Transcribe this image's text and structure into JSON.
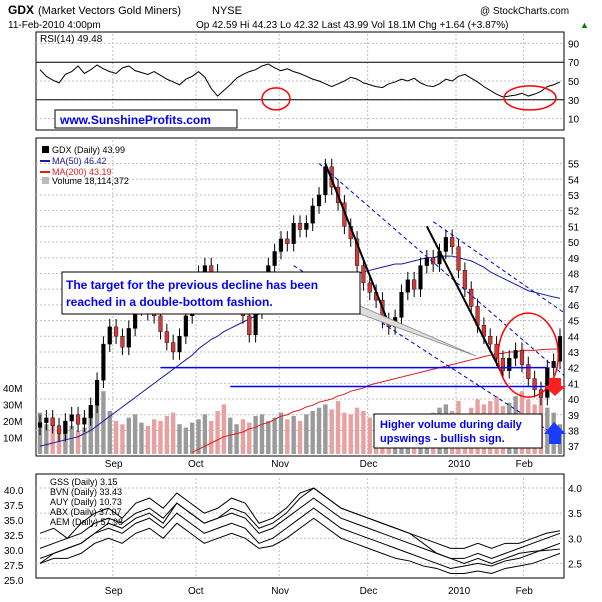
{
  "header": {
    "symbol": "GDX",
    "name": "(Market Vectors Gold Miners)",
    "exchange": "NYSE",
    "copyright": "@ StockCharts.com",
    "date": "11-Feb-2010 4:00pm",
    "ohlc": "Op 42.59  Hi 44.23  Lo 42.32  Last 43.99  Vol 18.1M  Chg +1.64 (+3.87%)",
    "change_arrow": "▲"
  },
  "colors": {
    "frame": "#000000",
    "panel_bg": "#ffffff",
    "grid": "#c0c0c0",
    "rsi": "#000000",
    "ma50": "#1a1aa8",
    "ma200": "#e21c1c",
    "up": "#000000",
    "down": "#d23a3a",
    "vol_up": "#9a9a9a",
    "vol_down": "#e8a0a0",
    "support": "#0000ff",
    "trend": "#0000cc",
    "ellipse": "#ff0000",
    "callout_text": "#0000ff",
    "callout_border": "#000000",
    "arrow_red": "#ff2020",
    "arrow_blue": "#1a3cff"
  },
  "chart_data": {
    "type": "line",
    "x_labels": [
      "Sep",
      "Oct",
      "Nov",
      "Dec",
      "2010",
      "Feb"
    ],
    "rsi": {
      "label": "RSI(14) 49.48",
      "y_ticks": [
        90,
        70,
        50,
        30,
        10
      ],
      "ylim": [
        0,
        100
      ],
      "levels": [
        70,
        30
      ],
      "values": [
        62,
        55,
        51,
        48,
        57,
        60,
        66,
        58,
        62,
        67,
        63,
        60,
        58,
        64,
        66,
        61,
        59,
        57,
        60,
        56,
        52,
        49,
        46,
        52,
        55,
        60,
        54,
        42,
        34,
        40,
        46,
        53,
        57,
        60,
        62,
        66,
        68,
        64,
        61,
        63,
        60,
        58,
        55,
        52,
        50,
        47,
        44,
        47,
        50,
        54,
        52,
        48,
        46,
        44,
        43,
        47,
        49,
        52,
        50,
        53,
        48,
        45,
        44,
        47,
        52,
        50,
        55,
        57,
        53,
        49,
        44,
        40,
        36,
        33,
        34,
        35,
        37,
        34,
        36,
        39,
        44,
        46,
        49
      ]
    },
    "price": {
      "legend": [
        "GDX (Daily) 43.99",
        "MA(50) 46.42",
        "MA(200) 43.19",
        "Volume 18,114,372"
      ],
      "y_ticks": [
        55,
        54,
        53,
        52,
        51,
        50,
        49,
        48,
        47,
        46,
        45,
        44,
        43,
        42,
        41,
        40,
        39,
        38,
        37
      ],
      "ylim": [
        36.5,
        56.5
      ],
      "volume_ticks": [
        "40M",
        "30M",
        "20M",
        "10M"
      ],
      "volume_max": 45,
      "close": [
        38.5,
        38.8,
        38.3,
        37.8,
        38.6,
        39.0,
        38.4,
        38.8,
        39.6,
        41.2,
        43.5,
        44.6,
        44.0,
        43.3,
        44.5,
        45.8,
        46.0,
        45.5,
        45.3,
        44.3,
        43.6,
        43.0,
        44.0,
        45.3,
        46.0,
        48.0,
        48.5,
        48.1,
        46.6,
        45.9,
        46.4,
        46.8,
        45.3,
        44.1,
        45.6,
        47.2,
        48.5,
        49.4,
        50.2,
        49.9,
        51.2,
        50.8,
        51.2,
        52.3,
        53.0,
        54.8,
        53.5,
        52.5,
        51.0,
        50.2,
        48.5,
        47.4,
        46.8,
        46.3,
        45.0,
        44.6,
        45.2,
        46.8,
        47.6,
        47.0,
        48.5,
        49.0,
        48.6,
        49.4,
        50.3,
        49.7,
        48.2,
        47.0,
        45.9,
        44.7,
        44.0,
        43.5,
        42.6,
        41.8,
        42.6,
        43.1,
        42.2,
        41.3,
        40.6,
        40.1,
        42.0,
        42.4,
        43.99
      ],
      "ma50": [
        37.0,
        37.1,
        37.2,
        37.3,
        37.4,
        37.5,
        37.6,
        37.8,
        38.0,
        38.3,
        38.6,
        38.9,
        39.2,
        39.5,
        39.8,
        40.1,
        40.4,
        40.7,
        41.0,
        41.3,
        41.6,
        41.9,
        42.2,
        42.5,
        42.8,
        43.2,
        43.5,
        43.8,
        44.0,
        44.3,
        44.5,
        44.7,
        44.9,
        45.1,
        45.3,
        45.5,
        45.7,
        45.9,
        46.1,
        46.3,
        46.5,
        46.7,
        46.9,
        47.1,
        47.3,
        47.5,
        47.6,
        47.7,
        47.8,
        47.9,
        48.0,
        48.1,
        48.2,
        48.3,
        48.4,
        48.5,
        48.6,
        48.6,
        48.7,
        48.8,
        48.9,
        49.0,
        49.0,
        49.1,
        49.1,
        49.1,
        49.0,
        48.9,
        48.8,
        48.6,
        48.4,
        48.1,
        47.9,
        47.7,
        47.5,
        47.3,
        47.1,
        46.9,
        46.8,
        46.7,
        46.6,
        46.5,
        46.42
      ],
      "ma200": [
        null,
        null,
        null,
        null,
        null,
        null,
        null,
        null,
        null,
        null,
        null,
        null,
        null,
        null,
        null,
        null,
        null,
        null,
        null,
        null,
        null,
        null,
        null,
        null,
        36.6,
        36.8,
        37.0,
        37.2,
        37.4,
        37.6,
        37.7,
        37.8,
        37.9,
        38.1,
        38.2,
        38.4,
        38.5,
        38.7,
        38.9,
        39.0,
        39.2,
        39.3,
        39.5,
        39.6,
        39.8,
        39.9,
        40.0,
        40.2,
        40.3,
        40.5,
        40.6,
        40.7,
        40.9,
        41.0,
        41.1,
        41.2,
        41.3,
        41.4,
        41.5,
        41.6,
        41.7,
        41.8,
        41.9,
        42.0,
        42.1,
        42.2,
        42.3,
        42.4,
        42.5,
        42.6,
        42.7,
        42.8,
        42.9,
        42.9,
        43.0,
        43.0,
        43.1,
        43.1,
        43.1,
        43.15,
        43.17,
        43.18,
        43.19
      ],
      "volume": [
        25,
        18,
        22,
        15,
        20,
        17,
        14,
        16,
        22,
        30,
        38,
        26,
        20,
        18,
        22,
        24,
        19,
        17,
        21,
        20,
        23,
        25,
        18,
        16,
        19,
        21,
        24,
        20,
        26,
        30,
        22,
        18,
        21,
        19,
        23,
        24,
        20,
        22,
        25,
        21,
        23,
        20,
        24,
        26,
        28,
        30,
        27,
        32,
        25,
        24,
        28,
        26,
        22,
        24,
        20,
        22,
        21,
        23,
        20,
        19,
        21,
        24,
        25,
        28,
        30,
        26,
        32,
        24,
        28,
        33,
        30,
        32,
        35,
        29,
        31,
        35,
        38,
        33,
        30,
        34,
        28,
        25,
        18
      ]
    },
    "indicators": {
      "legend": [
        "GSS (Daily) 3.15",
        "BVN (Daily) 33.43",
        "AUY (Daily) 10.73",
        "ABX (Daily) 37.07",
        "AEM (Daily) 57.98"
      ],
      "left_ticks": [
        40.0,
        37.5,
        35.0,
        32.5,
        30.0,
        27.5,
        25.0
      ],
      "right_ticks": [
        4.0,
        3.5,
        3.0,
        2.5
      ],
      "series": [
        {
          "name": "GSS",
          "values": [
            3.1,
            3.2,
            3.0,
            3.3,
            3.5,
            3.6,
            3.4,
            3.7,
            3.8,
            3.6,
            3.9,
            3.7,
            3.5,
            3.6,
            3.8,
            3.7,
            3.3,
            3.4,
            3.6,
            3.9,
            4.0,
            3.8,
            3.6,
            3.5,
            3.4,
            3.3,
            3.2,
            3.1,
            3.0,
            2.9,
            2.8,
            2.8,
            2.9,
            2.8,
            2.9,
            2.9,
            3.0,
            3.1,
            3.15
          ]
        },
        {
          "name": "BVN",
          "values": [
            32,
            33,
            33.5,
            34,
            35,
            36,
            35.5,
            36.5,
            37,
            36,
            38,
            37,
            36,
            36.5,
            37.5,
            37,
            35.5,
            36,
            37,
            38.5,
            39.5,
            38.5,
            37.5,
            37,
            36.5,
            36,
            35.5,
            35,
            34,
            33,
            32.5,
            32,
            32.5,
            32,
            32.5,
            33,
            33.2,
            33.3,
            33.43
          ]
        },
        {
          "name": "AUY",
          "values": [
            2.8,
            2.9,
            3.0,
            3.1,
            3.3,
            3.4,
            3.3,
            3.5,
            3.6,
            3.4,
            3.7,
            3.5,
            3.3,
            3.4,
            3.5,
            3.4,
            3.1,
            3.2,
            3.4,
            3.6,
            3.8,
            3.6,
            3.4,
            3.3,
            3.2,
            3.1,
            3.0,
            2.9,
            2.8,
            2.7,
            2.6,
            2.6,
            2.7,
            2.6,
            2.7,
            2.8,
            2.9,
            3.0,
            3.1
          ]
        },
        {
          "name": "ABX",
          "values": [
            2.6,
            2.7,
            2.8,
            2.9,
            3.1,
            3.2,
            3.1,
            3.3,
            3.4,
            3.2,
            3.5,
            3.3,
            3.1,
            3.2,
            3.3,
            3.2,
            2.9,
            3.0,
            3.2,
            3.4,
            3.6,
            3.4,
            3.2,
            3.1,
            3.0,
            2.9,
            2.8,
            2.7,
            2.6,
            2.5,
            2.4,
            2.45,
            2.5,
            2.45,
            2.55,
            2.6,
            2.7,
            2.8,
            2.9
          ]
        },
        {
          "name": "AEM",
          "values": [
            2.5,
            2.6,
            2.6,
            2.7,
            2.9,
            3.0,
            2.9,
            3.1,
            3.2,
            3.0,
            3.3,
            3.1,
            2.9,
            3.0,
            3.1,
            3.0,
            2.8,
            2.85,
            3.0,
            3.2,
            3.4,
            3.2,
            3.0,
            2.9,
            2.8,
            2.7,
            2.6,
            2.55,
            2.45,
            2.4,
            2.3,
            2.3,
            2.35,
            2.3,
            2.4,
            2.45,
            2.5,
            2.6,
            2.7
          ]
        }
      ]
    },
    "annotations": {
      "watermark": "www.SunshineProfits.com",
      "callout_1": [
        "The target for the previous decline has been",
        "reached in a double-bottom fashion."
      ],
      "callout_2": [
        "Higher volume during daily",
        "upswings - bullish sign."
      ]
    }
  }
}
